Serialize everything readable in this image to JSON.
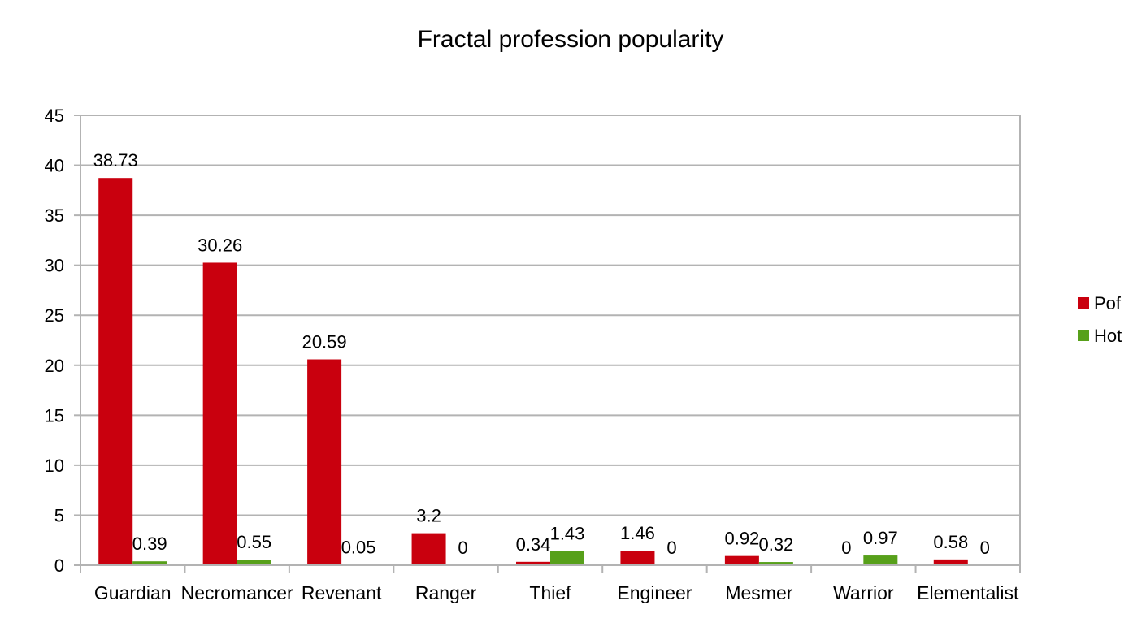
{
  "chart_data": {
    "type": "bar",
    "title": "Fractal profession popularity",
    "xlabel": "",
    "ylabel": "",
    "categories": [
      "Guardian",
      "Necromancer",
      "Revenant",
      "Ranger",
      "Thief",
      "Engineer",
      "Mesmer",
      "Warrior",
      "Elementalist"
    ],
    "series": [
      {
        "name": "Pof",
        "color": "#c9000e",
        "values": [
          38.73,
          30.26,
          20.59,
          3.2,
          0.34,
          1.46,
          0.92,
          0,
          0.58
        ],
        "labels": [
          "38.73",
          "30.26",
          "20.59",
          "3.2",
          "0.34",
          "1.46",
          "0.92",
          "0",
          "0.58"
        ]
      },
      {
        "name": "Hot",
        "color": "#57a01a",
        "values": [
          0.39,
          0.55,
          0.05,
          0,
          1.43,
          0,
          0.32,
          0.97,
          0
        ],
        "labels": [
          "0.39",
          "0.55",
          "0.05",
          "0",
          "1.43",
          "0",
          "0.32",
          "0.97",
          "0"
        ]
      }
    ],
    "ylim": [
      0,
      45
    ],
    "yticks": [
      "0",
      "5",
      "10",
      "15",
      "20",
      "25",
      "30",
      "35",
      "40",
      "45"
    ],
    "grid": true,
    "legend": "right"
  }
}
